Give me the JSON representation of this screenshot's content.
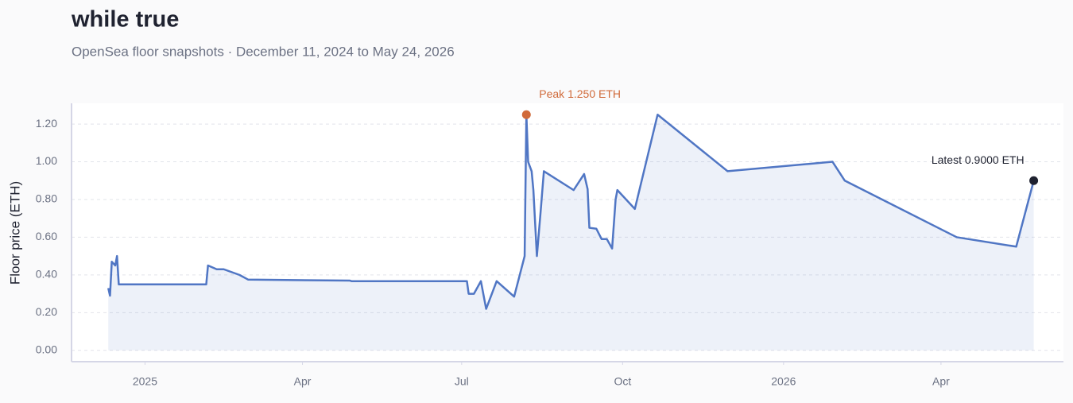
{
  "chart_data": {
    "type": "line",
    "title": "while true",
    "subtitle": "OpenSea floor snapshots · December 11, 2024 to May 24, 2026",
    "ylabel": "Floor price (ETH)",
    "x": [
      "2024-12-11",
      "2024-12-12",
      "2024-12-13",
      "2024-12-15",
      "2024-12-16",
      "2024-12-17",
      "2025-02-05",
      "2025-02-06",
      "2025-02-11",
      "2025-02-15",
      "2025-02-24",
      "2025-03-01",
      "2025-04-28",
      "2025-04-29",
      "2025-07-04",
      "2025-07-05",
      "2025-07-08",
      "2025-07-12",
      "2025-07-15",
      "2025-07-21",
      "2025-07-31",
      "2025-08-06",
      "2025-08-07",
      "2025-08-08",
      "2025-08-10",
      "2025-08-11",
      "2025-08-13",
      "2025-08-15",
      "2025-08-17",
      "2025-09-03",
      "2025-09-09",
      "2025-09-11",
      "2025-09-12",
      "2025-09-16",
      "2025-09-19",
      "2025-09-22",
      "2025-09-25",
      "2025-09-27",
      "2025-09-28",
      "2025-10-08",
      "2025-10-21",
      "2025-11-30",
      "2026-01-29",
      "2026-02-05",
      "2026-04-10",
      "2026-05-14",
      "2026-05-24"
    ],
    "series": [
      {
        "name": "Floor price",
        "color": "#5076c4",
        "values": [
          0.33,
          0.29,
          0.47,
          0.45,
          0.5,
          0.35,
          0.35,
          0.45,
          0.43,
          0.43,
          0.4,
          0.375,
          0.37,
          0.367,
          0.367,
          0.3,
          0.3,
          0.367,
          0.22,
          0.367,
          0.285,
          0.5,
          1.25,
          1.0,
          0.95,
          0.85,
          0.5,
          0.72,
          0.95,
          0.85,
          0.935,
          0.855,
          0.65,
          0.645,
          0.59,
          0.59,
          0.54,
          0.8,
          0.85,
          0.75,
          1.25,
          0.95,
          1.0,
          0.9,
          0.6,
          0.55,
          0.9
        ]
      }
    ],
    "xlim": [
      "2024-11-20",
      "2026-06-10"
    ],
    "xticks": [
      {
        "value": "2025-01-01",
        "label": "2025"
      },
      {
        "value": "2025-04-01",
        "label": "Apr"
      },
      {
        "value": "2025-07-01",
        "label": "Jul"
      },
      {
        "value": "2025-10-01",
        "label": "Oct"
      },
      {
        "value": "2026-01-01",
        "label": "2026"
      },
      {
        "value": "2026-04-01",
        "label": "Apr"
      }
    ],
    "ylim": [
      -0.06,
      1.31
    ],
    "yticks": [
      {
        "value": 0,
        "label": "0.00"
      },
      {
        "value": 0.2,
        "label": "0.20"
      },
      {
        "value": 0.4,
        "label": "0.40"
      },
      {
        "value": 0.6,
        "label": "0.60"
      },
      {
        "value": 0.8,
        "label": "0.80"
      },
      {
        "value": 1.0,
        "label": "1.00"
      },
      {
        "value": 1.2,
        "label": "1.20"
      }
    ],
    "grid": true,
    "annotations": [
      {
        "text": "Peak 1.250 ETH",
        "x": "2025-08-07",
        "y": 1.25,
        "color": "#d06a3a"
      },
      {
        "text": "Latest 0.9000 ETH",
        "x": "2026-05-24",
        "y": 0.9,
        "color": "#1f2230"
      }
    ]
  }
}
